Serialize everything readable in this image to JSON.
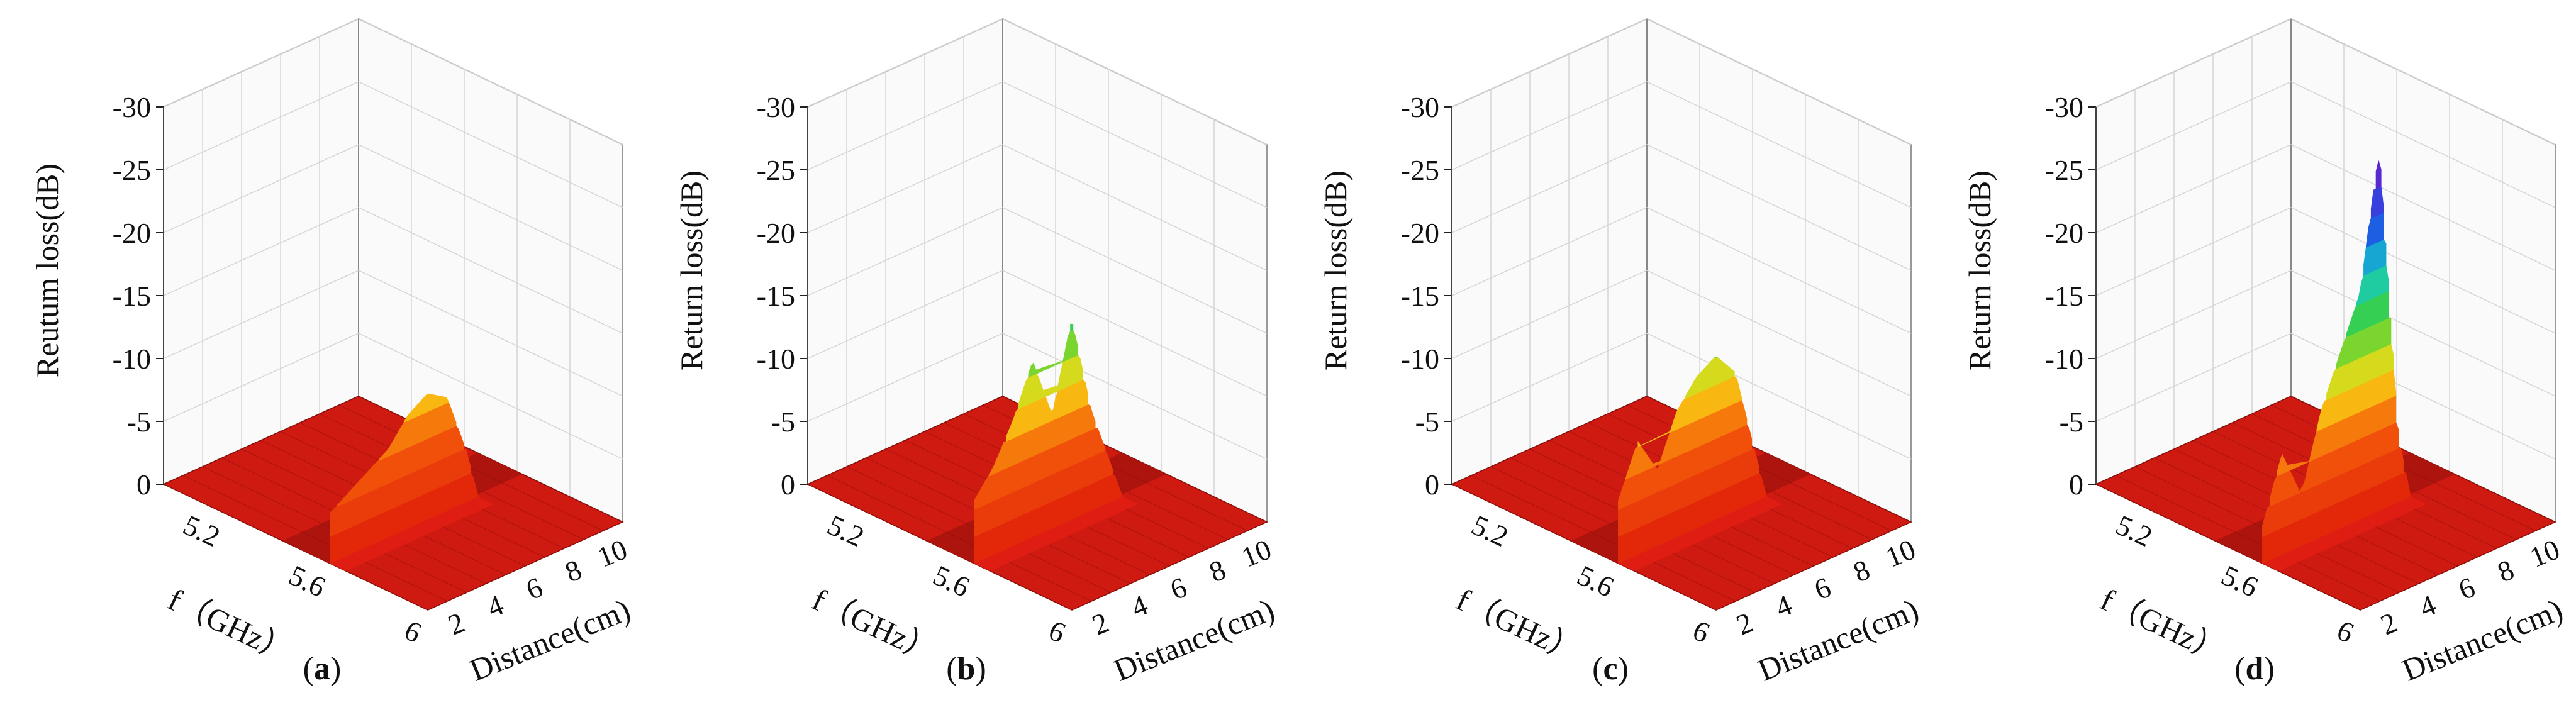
{
  "chart_data": [
    {
      "type": "surface3d",
      "caption": "a",
      "zlabel": "Reutum loss(dB)",
      "xlabel": "f（GHz）",
      "ylabel": "Distance(cm)",
      "z_ticks": [
        "0",
        "-5",
        "-10",
        "-15",
        "-20",
        "-25",
        "-30"
      ],
      "f_ticks": [
        "5.2",
        "5.6",
        "6"
      ],
      "d_ticks": [
        "2",
        "4",
        "6",
        "8",
        "10"
      ],
      "zlim": [
        0,
        -30
      ],
      "f_range": [
        5.0,
        6.0
      ],
      "d_range": [
        1,
        11
      ],
      "ridge": [
        {
          "d": 1,
          "depth": -4
        },
        {
          "d": 2,
          "depth": -5
        },
        {
          "d": 3,
          "depth": -6
        },
        {
          "d": 4,
          "depth": -7
        },
        {
          "d": 5,
          "depth": -9
        },
        {
          "d": 6,
          "depth": -10
        },
        {
          "d": 7,
          "depth": -9
        },
        {
          "d": 8,
          "depth": -4
        }
      ]
    },
    {
      "type": "surface3d",
      "caption": "b",
      "zlabel": "Return loss(dB)",
      "xlabel": "f（GHz）",
      "ylabel": "Distance(cm)",
      "z_ticks": [
        "0",
        "-5",
        "-10",
        "-15",
        "-20",
        "-25",
        "-30"
      ],
      "f_ticks": [
        "5.2",
        "5.6",
        "6"
      ],
      "d_ticks": [
        "2",
        "4",
        "6",
        "8",
        "10"
      ],
      "zlim": [
        0,
        -30
      ],
      "f_range": [
        5.0,
        6.0
      ],
      "d_range": [
        1,
        11
      ],
      "ridge": [
        {
          "d": 1,
          "depth": -5
        },
        {
          "d": 2,
          "depth": -7
        },
        {
          "d": 3,
          "depth": -10
        },
        {
          "d": 4,
          "depth": -14
        },
        {
          "d": 5,
          "depth": -9
        },
        {
          "d": 6,
          "depth": -16
        },
        {
          "d": 7,
          "depth": -8
        },
        {
          "d": 8,
          "depth": -3
        }
      ]
    },
    {
      "type": "surface3d",
      "caption": "c",
      "zlabel": "Return loss(dB)",
      "xlabel": "f（GHz）",
      "ylabel": "Distance(cm)",
      "z_ticks": [
        "0",
        "-5",
        "-10",
        "-15",
        "-20",
        "-25",
        "-30"
      ],
      "f_ticks": [
        "5.2",
        "5.6",
        "6"
      ],
      "d_ticks": [
        "2",
        "4",
        "6",
        "8",
        "10"
      ],
      "zlim": [
        0,
        -30
      ],
      "f_range": [
        5.0,
        6.0
      ],
      "d_range": [
        1,
        11
      ],
      "ridge": [
        {
          "d": 1,
          "depth": -5
        },
        {
          "d": 2,
          "depth": -9
        },
        {
          "d": 3,
          "depth": -6
        },
        {
          "d": 4,
          "depth": -10
        },
        {
          "d": 5,
          "depth": -12
        },
        {
          "d": 6,
          "depth": -13
        },
        {
          "d": 7,
          "depth": -11
        },
        {
          "d": 8,
          "depth": -4
        }
      ]
    },
    {
      "type": "surface3d",
      "caption": "d",
      "zlabel": "Return loss(dB)",
      "xlabel": "f（GHz）",
      "ylabel": "Distance(cm)",
      "z_ticks": [
        "0",
        "-5",
        "-10",
        "-15",
        "-20",
        "-25",
        "-30"
      ],
      "f_ticks": [
        "5.2",
        "5.6",
        "6"
      ],
      "d_ticks": [
        "2",
        "4",
        "6",
        "8",
        "10"
      ],
      "zlim": [
        0,
        -30
      ],
      "f_range": [
        5.0,
        6.0
      ],
      "d_range": [
        1,
        11
      ],
      "ridge": [
        {
          "d": 1,
          "depth": -3
        },
        {
          "d": 2,
          "depth": -8
        },
        {
          "d": 3,
          "depth": -4
        },
        {
          "d": 4,
          "depth": -10
        },
        {
          "d": 5,
          "depth": -14
        },
        {
          "d": 6,
          "depth": -18
        },
        {
          "d": 7,
          "depth": -29
        },
        {
          "d": 8,
          "depth": -5
        }
      ]
    }
  ]
}
